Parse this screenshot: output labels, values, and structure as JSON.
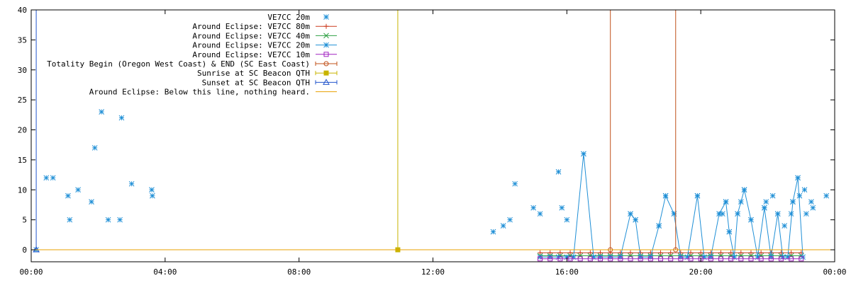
{
  "chart_data": {
    "type": "scatter",
    "title": "",
    "xlabel": "",
    "ylabel": "",
    "x_unit": "hours",
    "xlim": [
      0,
      24
    ],
    "ylim": [
      -2,
      40
    ],
    "x_ticks": [
      {
        "value": 0,
        "label": "00:00"
      },
      {
        "value": 4,
        "label": "04:00"
      },
      {
        "value": 8,
        "label": "08:00"
      },
      {
        "value": 12,
        "label": "12:00"
      },
      {
        "value": 16,
        "label": "16:00"
      },
      {
        "value": 20,
        "label": "20:00"
      },
      {
        "value": 24,
        "label": "00:00"
      }
    ],
    "y_ticks": [
      {
        "value": 0,
        "label": "0"
      },
      {
        "value": 5,
        "label": "5"
      },
      {
        "value": 10,
        "label": "10"
      },
      {
        "value": 15,
        "label": "15"
      },
      {
        "value": 20,
        "label": "20"
      },
      {
        "value": 25,
        "label": "25"
      },
      {
        "value": 30,
        "label": "30"
      },
      {
        "value": 35,
        "label": "35"
      },
      {
        "value": 40,
        "label": "40"
      }
    ],
    "grid": false,
    "legend_position": "top-center",
    "series": [
      {
        "name": "VE7CC 20m",
        "style": "points",
        "marker": "asterisk",
        "color": "#1f8fd6",
        "points": [
          [
            0.15,
            0
          ],
          [
            0.45,
            12
          ],
          [
            0.65,
            12
          ],
          [
            1.1,
            9
          ],
          [
            1.15,
            5
          ],
          [
            1.4,
            10
          ],
          [
            1.8,
            8
          ],
          [
            1.9,
            17
          ],
          [
            2.1,
            23
          ],
          [
            2.3,
            5
          ],
          [
            2.65,
            5
          ],
          [
            2.7,
            22
          ],
          [
            3.0,
            11
          ],
          [
            3.6,
            10
          ],
          [
            3.62,
            9
          ],
          [
            13.8,
            3
          ],
          [
            14.1,
            4
          ],
          [
            14.3,
            5
          ],
          [
            14.45,
            11
          ],
          [
            15.0,
            7
          ],
          [
            15.2,
            6
          ],
          [
            15.75,
            13
          ],
          [
            15.85,
            7
          ],
          [
            16.0,
            5
          ],
          [
            16.5,
            16
          ],
          [
            17.9,
            6
          ],
          [
            18.05,
            5
          ],
          [
            18.75,
            4
          ],
          [
            18.95,
            9
          ],
          [
            19.2,
            6
          ],
          [
            19.9,
            9
          ],
          [
            20.55,
            6
          ],
          [
            20.65,
            6
          ],
          [
            20.75,
            8
          ],
          [
            20.85,
            3
          ],
          [
            21.1,
            6
          ],
          [
            21.2,
            8
          ],
          [
            21.3,
            10
          ],
          [
            21.5,
            5
          ],
          [
            21.9,
            7
          ],
          [
            21.95,
            8
          ],
          [
            22.15,
            9
          ],
          [
            22.3,
            6
          ],
          [
            22.5,
            4
          ],
          [
            22.7,
            6
          ],
          [
            22.75,
            8
          ],
          [
            22.9,
            12
          ],
          [
            22.95,
            9
          ],
          [
            23.15,
            6
          ],
          [
            23.1,
            10
          ],
          [
            23.3,
            8
          ],
          [
            23.35,
            7
          ],
          [
            23.75,
            9
          ]
        ]
      },
      {
        "name": "Around Eclipse: VE7CC 80m",
        "style": "linespoints",
        "marker": "plus",
        "color": "#cc3b1f",
        "points": [
          [
            15.2,
            -0.5
          ],
          [
            15.5,
            -0.5
          ],
          [
            15.8,
            -0.5
          ],
          [
            16.1,
            -0.5
          ],
          [
            16.4,
            -0.5
          ],
          [
            16.7,
            -0.5
          ],
          [
            17.0,
            -0.5
          ],
          [
            17.3,
            -0.5
          ],
          [
            17.6,
            -0.5
          ],
          [
            17.9,
            -0.5
          ],
          [
            18.2,
            -0.5
          ],
          [
            18.5,
            -0.5
          ],
          [
            18.8,
            -0.5
          ],
          [
            19.1,
            -0.5
          ],
          [
            19.4,
            -0.5
          ],
          [
            19.7,
            -0.5
          ],
          [
            20.0,
            -0.5
          ],
          [
            20.3,
            -0.5
          ],
          [
            20.6,
            -0.5
          ],
          [
            20.9,
            -0.5
          ],
          [
            21.2,
            -0.5
          ],
          [
            21.5,
            -0.5
          ],
          [
            21.8,
            -0.5
          ],
          [
            22.1,
            -0.5
          ],
          [
            22.4,
            -0.5
          ],
          [
            22.7,
            -0.5
          ],
          [
            23.0,
            -0.5
          ]
        ]
      },
      {
        "name": "Around Eclipse: VE7CC 40m",
        "style": "linespoints",
        "marker": "cross",
        "color": "#2ea043",
        "points": [
          [
            15.2,
            -1
          ],
          [
            15.5,
            -1
          ],
          [
            15.8,
            -1
          ],
          [
            16.1,
            -1
          ],
          [
            16.4,
            -1
          ],
          [
            16.7,
            -1
          ],
          [
            17.0,
            -1
          ],
          [
            17.3,
            -1
          ],
          [
            17.6,
            -1
          ],
          [
            17.9,
            -1
          ],
          [
            18.2,
            -1
          ],
          [
            18.5,
            -1
          ],
          [
            18.8,
            -1
          ],
          [
            19.1,
            -1
          ],
          [
            19.4,
            -1
          ],
          [
            19.7,
            -1
          ],
          [
            20.0,
            -1
          ],
          [
            20.3,
            -1
          ],
          [
            20.6,
            -1
          ],
          [
            20.9,
            -1
          ],
          [
            21.2,
            -1
          ],
          [
            21.5,
            -1
          ],
          [
            21.8,
            -1
          ],
          [
            22.1,
            -1
          ],
          [
            22.4,
            -1
          ],
          [
            22.7,
            -1
          ],
          [
            23.0,
            -1
          ]
        ]
      },
      {
        "name": "Around Eclipse: VE7CC 20m",
        "style": "linespoints",
        "marker": "asterisk",
        "color": "#1f8fd6",
        "points": [
          [
            15.2,
            -1.2
          ],
          [
            15.5,
            -1.2
          ],
          [
            15.75,
            -1.2
          ],
          [
            16.0,
            -1.2
          ],
          [
            16.2,
            -1.2
          ],
          [
            16.5,
            16
          ],
          [
            16.8,
            -1.2
          ],
          [
            17.0,
            -1.2
          ],
          [
            17.3,
            -1.2
          ],
          [
            17.6,
            -1.2
          ],
          [
            17.9,
            6
          ],
          [
            18.05,
            5
          ],
          [
            18.2,
            -1.2
          ],
          [
            18.5,
            -1.2
          ],
          [
            18.75,
            4
          ],
          [
            18.95,
            9
          ],
          [
            19.2,
            6
          ],
          [
            19.4,
            -1.2
          ],
          [
            19.6,
            -1.2
          ],
          [
            19.9,
            9
          ],
          [
            20.1,
            -1.2
          ],
          [
            20.3,
            -1.2
          ],
          [
            20.55,
            6
          ],
          [
            20.75,
            8
          ],
          [
            20.85,
            3
          ],
          [
            21.0,
            -1.2
          ],
          [
            21.1,
            6
          ],
          [
            21.3,
            10
          ],
          [
            21.5,
            5
          ],
          [
            21.7,
            -1.2
          ],
          [
            21.9,
            7
          ],
          [
            22.1,
            -1.2
          ],
          [
            22.3,
            6
          ],
          [
            22.45,
            -1.2
          ],
          [
            22.6,
            -1.2
          ],
          [
            22.75,
            8
          ],
          [
            22.9,
            12
          ],
          [
            23.05,
            -1.2
          ]
        ]
      },
      {
        "name": "Around Eclipse: VE7CC 10m",
        "style": "linespoints",
        "marker": "square",
        "color": "#a020c0",
        "points": [
          [
            15.2,
            -1.5
          ],
          [
            15.5,
            -1.5
          ],
          [
            15.8,
            -1.5
          ],
          [
            16.1,
            -1.5
          ],
          [
            16.4,
            -1.5
          ],
          [
            16.7,
            -1.5
          ],
          [
            17.0,
            -1.5
          ],
          [
            17.3,
            -1.5
          ],
          [
            17.6,
            -1.5
          ],
          [
            17.9,
            -1.5
          ],
          [
            18.2,
            -1.5
          ],
          [
            18.5,
            -1.5
          ],
          [
            18.8,
            -1.5
          ],
          [
            19.1,
            -1.5
          ],
          [
            19.4,
            -1.5
          ],
          [
            19.7,
            -1.5
          ],
          [
            20.0,
            -1.5
          ],
          [
            20.3,
            -1.5
          ],
          [
            20.6,
            -1.5
          ],
          [
            20.9,
            -1.5
          ],
          [
            21.2,
            -1.5
          ],
          [
            21.5,
            -1.5
          ],
          [
            21.8,
            -1.5
          ],
          [
            22.1,
            -1.5
          ],
          [
            22.4,
            -1.5
          ],
          [
            22.7,
            -1.5
          ],
          [
            23.0,
            -1.5
          ]
        ]
      },
      {
        "name": "Totality Begin (Oregon West Coast) & END (SC East Coast)",
        "style": "impulses",
        "marker": "circle",
        "color": "#c0501a",
        "points": [
          [
            17.3,
            40
          ],
          [
            19.25,
            40
          ]
        ]
      },
      {
        "name": "Sunrise at SC Beacon QTH",
        "style": "impulses",
        "marker": "filled-square",
        "color": "#c8b400",
        "points": [
          [
            10.95,
            40
          ]
        ]
      },
      {
        "name": "Sunset at SC Beacon QTH",
        "style": "impulses",
        "marker": "triangle",
        "color": "#2255cc",
        "points": [
          [
            0.15,
            40
          ]
        ]
      },
      {
        "name": "Around Eclipse: Below this line, nothing heard.",
        "style": "line",
        "marker": "none",
        "color": "#e8a000",
        "points": [
          [
            0,
            0
          ],
          [
            24,
            0
          ]
        ]
      }
    ]
  }
}
